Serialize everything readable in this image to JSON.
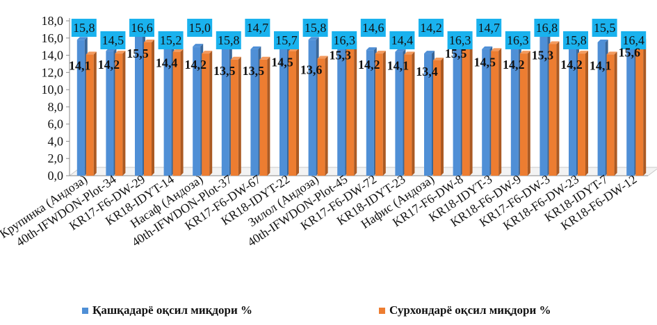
{
  "chart_data": {
    "type": "bar",
    "categories": [
      "Крупинка (Андоза)",
      "40th-IFWDON-Plot-34",
      "KR17-F6-DW-29",
      "KR18-IDYT-14",
      "Насаф (Андоза)",
      "40th-IFWDON-Plot-37",
      "KR17-F6-DW-67",
      "KR18-IDYT-22",
      "Зилол (Андоза)",
      "40th-IFWDON-Plot-45",
      "KR17-F6-DW-72",
      "KR18-IDYT-23",
      "Нафис (Андоза)",
      "KR17-F6-DW-8",
      "KR18-IDYT-3",
      "KR18-F6-DW-9",
      "KR17-F6-DW-3",
      "KR18-F6-DW-23",
      "KR18-IDYT-7",
      "KR18-F6-DW-12"
    ],
    "series": [
      {
        "name": "Қашқадарё оқсил миқдори %",
        "color": "#4f8fd6",
        "values": [
          15.8,
          14.5,
          16.6,
          15.2,
          15.0,
          15.8,
          14.7,
          15.7,
          15.8,
          16.3,
          14.6,
          14.4,
          14.2,
          16.3,
          14.7,
          16.3,
          16.8,
          15.8,
          15.5,
          16.4
        ],
        "labels": [
          "15,8",
          "14,5",
          "16,6",
          "15,2",
          "15,0",
          "15,8",
          "14,7",
          "15,7",
          "15,8",
          "16,3",
          "14,6",
          "14,4",
          "14,2",
          "16,3",
          "14,7",
          "16,3",
          "16,8",
          "15,8",
          "15,5",
          "16,4"
        ]
      },
      {
        "name": "Сурхондарё оқсил миқдори %",
        "color": "#ed7d31",
        "values": [
          14.1,
          14.2,
          15.5,
          14.4,
          14.2,
          13.5,
          13.5,
          14.5,
          13.6,
          15.3,
          14.2,
          14.1,
          13.4,
          15.5,
          14.5,
          14.2,
          15.3,
          14.2,
          14.1,
          15.6
        ],
        "labels": [
          "14,1",
          "14,2",
          "15,5",
          "14,4",
          "14,2",
          "13,5",
          "13,5",
          "14,5",
          "13,6",
          "15,3",
          "14,2",
          "14,1",
          "13,4",
          "15,5",
          "14,5",
          "14,2",
          "15,3",
          "14,2",
          "14,1",
          "15,6"
        ]
      }
    ],
    "y_ticks": [
      "0,0",
      "2,0",
      "4,0",
      "6,0",
      "8,0",
      "10,0",
      "12,0",
      "14,0",
      "16,0",
      "18,0"
    ],
    "ylim": [
      0,
      18
    ],
    "grid": false,
    "legend": "bottom"
  }
}
